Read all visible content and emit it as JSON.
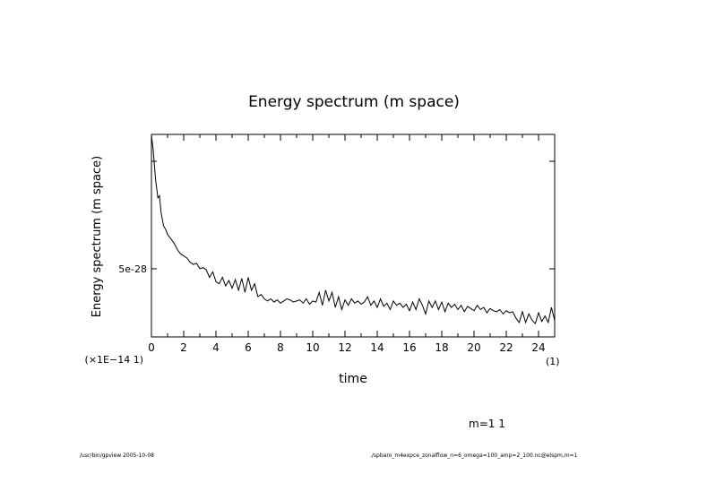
{
  "chart_data": {
    "type": "line",
    "title": "Energy spectrum (m space)",
    "xlabel": "time",
    "ylabel": "Energy spectrum (m space)",
    "x_unit_note": "(1)",
    "y_scale_note": "(×1E−14 1)",
    "xlim": [
      0,
      25
    ],
    "ylim": [
      1.83e-28,
      1.125e-27
    ],
    "x_ticks": [
      0,
      2,
      4,
      6,
      8,
      10,
      12,
      14,
      16,
      18,
      20,
      22,
      24
    ],
    "x_tick_labels": [
      "0",
      "2",
      "4",
      "6",
      "8",
      "10",
      "12",
      "14",
      "16",
      "18",
      "20",
      "22",
      "24"
    ],
    "x_minor_ticks": [
      1,
      3,
      5,
      7,
      9,
      11,
      13,
      15,
      17,
      19,
      21,
      23,
      25
    ],
    "y_ticks": [
      5e-28,
      1e-27
    ],
    "y_tick_labels": [
      "5e-28",
      ""
    ],
    "grid": false,
    "legend": "m=1 1",
    "series": [
      {
        "name": "m=1",
        "y_unit": "1e-28",
        "x": [
          0,
          0.1,
          0.25,
          0.4,
          0.5,
          0.6,
          0.75,
          0.9,
          1.0,
          1.2,
          1.4,
          1.6,
          1.8,
          2.0,
          2.2,
          2.4,
          2.6,
          2.8,
          3.0,
          3.2,
          3.4,
          3.6,
          3.8,
          4.0,
          4.2,
          4.4,
          4.6,
          4.8,
          5.0,
          5.2,
          5.4,
          5.6,
          5.8,
          6.0,
          6.2,
          6.4,
          6.6,
          6.8,
          7.0,
          7.2,
          7.4,
          7.6,
          7.8,
          8.0,
          8.2,
          8.4,
          8.6,
          8.8,
          9.0,
          9.2,
          9.4,
          9.6,
          9.8,
          10.0,
          10.2,
          10.4,
          10.6,
          10.8,
          11.0,
          11.2,
          11.4,
          11.6,
          11.8,
          12.0,
          12.2,
          12.4,
          12.6,
          12.8,
          13.0,
          13.2,
          13.4,
          13.6,
          13.8,
          14.0,
          14.2,
          14.4,
          14.6,
          14.8,
          15.0,
          15.2,
          15.4,
          15.6,
          15.8,
          16.0,
          16.2,
          16.4,
          16.6,
          16.8,
          17.0,
          17.2,
          17.4,
          17.6,
          17.8,
          18.0,
          18.2,
          18.4,
          18.6,
          18.8,
          19.0,
          19.2,
          19.4,
          19.6,
          19.8,
          20.0,
          20.2,
          20.4,
          20.6,
          20.8,
          21.0,
          21.2,
          21.4,
          21.6,
          21.8,
          22.0,
          22.2,
          22.4,
          22.6,
          22.8,
          23.0,
          23.2,
          23.4,
          23.6,
          23.8,
          24.0,
          24.2,
          24.4,
          24.6,
          24.8,
          25.0
        ],
        "values": [
          11.2,
          10.6,
          9.2,
          8.3,
          8.4,
          7.6,
          7.0,
          6.8,
          6.6,
          6.4,
          6.2,
          5.9,
          5.7,
          5.6,
          5.5,
          5.3,
          5.2,
          5.25,
          5.0,
          5.05,
          4.95,
          4.6,
          4.85,
          4.4,
          4.3,
          4.6,
          4.2,
          4.45,
          4.1,
          4.5,
          4.0,
          4.55,
          3.9,
          4.6,
          4.0,
          4.3,
          3.7,
          3.8,
          3.6,
          3.5,
          3.6,
          3.45,
          3.55,
          3.4,
          3.5,
          3.6,
          3.55,
          3.45,
          3.5,
          3.55,
          3.4,
          3.6,
          3.35,
          3.5,
          3.45,
          3.9,
          3.3,
          4.0,
          3.5,
          3.9,
          3.2,
          3.7,
          3.1,
          3.55,
          3.3,
          3.6,
          3.4,
          3.5,
          3.35,
          3.45,
          3.7,
          3.3,
          3.5,
          3.2,
          3.6,
          3.25,
          3.4,
          3.1,
          3.5,
          3.3,
          3.4,
          3.2,
          3.35,
          3.05,
          3.45,
          3.1,
          3.6,
          3.3,
          2.9,
          3.5,
          3.2,
          3.5,
          3.1,
          3.45,
          3.0,
          3.4,
          3.2,
          3.35,
          3.1,
          3.3,
          3.0,
          3.25,
          3.15,
          3.05,
          3.3,
          3.1,
          3.2,
          2.95,
          3.15,
          3.05,
          3.0,
          3.1,
          2.9,
          3.05,
          2.95,
          3.0,
          2.7,
          2.5,
          3.0,
          2.5,
          2.9,
          2.6,
          2.45,
          2.95,
          2.55,
          2.8,
          2.5,
          3.2,
          2.6
        ]
      }
    ]
  },
  "footer": {
    "left": "/usr/bin/gpview  2005-10-08",
    "right": "./spbaro_m4expce_zonalflow_n=6_omega=100_amp=2_100.nc@elspm,m=1"
  },
  "colors": {
    "line": "#000000",
    "background": "#ffffff"
  }
}
